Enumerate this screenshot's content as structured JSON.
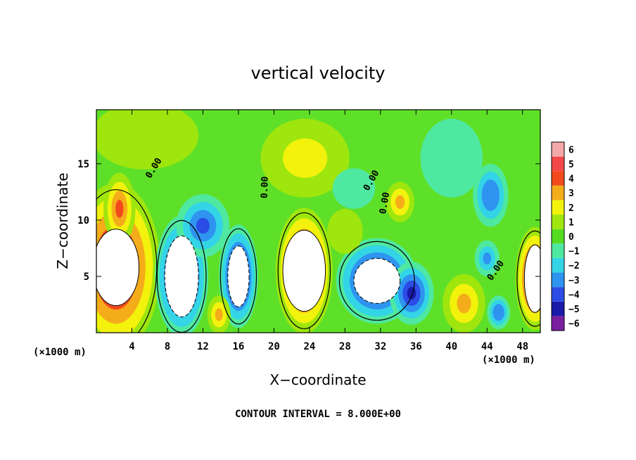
{
  "chart_data": {
    "type": "heatmap",
    "title": "vertical velocity",
    "xlabel": "X−coordinate",
    "ylabel": "Z−coordinate",
    "x_unit_left": "(×1000 m)",
    "x_unit_right": "(×1000 m)",
    "xlim": [
      0,
      50
    ],
    "ylim": [
      0,
      19.8
    ],
    "xticks": [
      4,
      8,
      12,
      16,
      20,
      24,
      28,
      32,
      36,
      40,
      44,
      48
    ],
    "xtick_labels": [
      "4",
      "8",
      "12",
      "16",
      "20",
      "24",
      "28",
      "32",
      "36",
      "40",
      "44",
      "48"
    ],
    "yticks": [
      5,
      10,
      15
    ],
    "ytick_labels": [
      "5",
      "10",
      "15"
    ],
    "colorbar": {
      "levels": [
        -6,
        -5,
        -4,
        -3,
        -2,
        -1,
        0,
        1,
        2,
        3,
        4,
        5,
        6
      ],
      "labels": [
        "−6",
        "−5",
        "−4",
        "−3",
        "−2",
        "−1",
        "0",
        "1",
        "2",
        "3",
        "4",
        "5",
        "6"
      ],
      "colors": [
        "#7a1fa0",
        "#1a1aa8",
        "#2c4ce6",
        "#2e94f0",
        "#33d4e6",
        "#4fe8a0",
        "#55dc22",
        "#9ee60e",
        "#f2f20c",
        "#f5ac1a",
        "#f24a1c",
        "#f24848",
        "#f4a8a8"
      ]
    },
    "background_color": "#5fe028",
    "contour_labels": [
      {
        "text": "0.00",
        "x": 6.5,
        "z": 14.6,
        "angle": -58
      },
      {
        "text": "0.00",
        "x": 19.0,
        "z": 12.9,
        "angle": -88
      },
      {
        "text": "0.00",
        "x": 31.0,
        "z": 13.5,
        "angle": -60
      },
      {
        "text": "0.00",
        "x": 32.5,
        "z": 11.5,
        "angle": -80
      },
      {
        "text": "0.00",
        "x": 45.0,
        "z": 5.5,
        "angle": -55
      }
    ],
    "features": [
      {
        "cx": 2.2,
        "cz": 5.8,
        "rx": 5.0,
        "rz": 7.5,
        "v": 5.6,
        "saturated": true,
        "white_rx": 2.6,
        "white_rz": 3.4
      },
      {
        "cx": 2.6,
        "cz": 11.0,
        "rx": 1.8,
        "rz": 3.2,
        "v": 4.0
      },
      {
        "cx": 23.4,
        "cz": 5.5,
        "rx": 3.2,
        "rz": 5.6,
        "v": 5.6,
        "saturated": true,
        "white_rx": 2.4,
        "white_rz": 3.6
      },
      {
        "cx": 49.4,
        "cz": 4.8,
        "rx": 2.2,
        "rz": 4.6,
        "v": 5.6,
        "saturated": true,
        "white_rx": 1.2,
        "white_rz": 3.0
      },
      {
        "cx": 9.6,
        "cz": 5.0,
        "rx": 3.0,
        "rz": 5.4,
        "v": -5.6,
        "saturated": true,
        "white_rx": 1.9,
        "white_rz": 3.6
      },
      {
        "cx": 16.0,
        "cz": 5.0,
        "rx": 2.2,
        "rz": 4.6,
        "v": -5.6,
        "saturated": true,
        "white_rx": 1.2,
        "white_rz": 2.7
      },
      {
        "cx": 12.0,
        "cz": 9.5,
        "rx": 3.0,
        "rz": 2.8,
        "v": -4.0
      },
      {
        "cx": 31.6,
        "cz": 4.6,
        "rx": 4.6,
        "rz": 3.8,
        "v": -5.6,
        "saturated": true,
        "white_rx": 2.6,
        "white_rz": 2.0
      },
      {
        "cx": 35.5,
        "cz": 3.5,
        "rx": 2.5,
        "rz": 2.8,
        "v": -4.8
      },
      {
        "cx": 13.8,
        "cz": 1.6,
        "rx": 1.3,
        "rz": 1.7,
        "v": 3.0
      },
      {
        "cx": 34.2,
        "cz": 11.6,
        "rx": 1.6,
        "rz": 1.8,
        "v": 3.0
      },
      {
        "cx": 44.4,
        "cz": 12.2,
        "rx": 2.0,
        "rz": 2.8,
        "v": -3.4
      },
      {
        "cx": 44.0,
        "cz": 6.6,
        "rx": 1.4,
        "rz": 1.6,
        "v": -3.0
      },
      {
        "cx": 41.4,
        "cz": 2.6,
        "rx": 2.4,
        "rz": 2.6,
        "v": 3.0
      },
      {
        "cx": 45.3,
        "cz": 1.8,
        "rx": 1.3,
        "rz": 1.5,
        "v": -3.5
      },
      {
        "cx": 5.5,
        "cz": 17.5,
        "rx": 6.0,
        "rz": 3.0,
        "v": 1.2
      },
      {
        "cx": 23.5,
        "cz": 15.5,
        "rx": 5.0,
        "rz": 3.5,
        "v": 1.5
      },
      {
        "cx": 40.0,
        "cz": 15.5,
        "rx": 3.5,
        "rz": 3.5,
        "v": -1.2
      },
      {
        "cx": 28.0,
        "cz": 9.0,
        "rx": 2.0,
        "rz": 2.0,
        "v": 1.3
      },
      {
        "cx": 29.0,
        "cz": 12.8,
        "rx": 2.4,
        "rz": 1.8,
        "v": -1.0
      }
    ]
  },
  "footer": {
    "contour_interval": "CONTOUR INTERVAL = 8.000E+00"
  }
}
